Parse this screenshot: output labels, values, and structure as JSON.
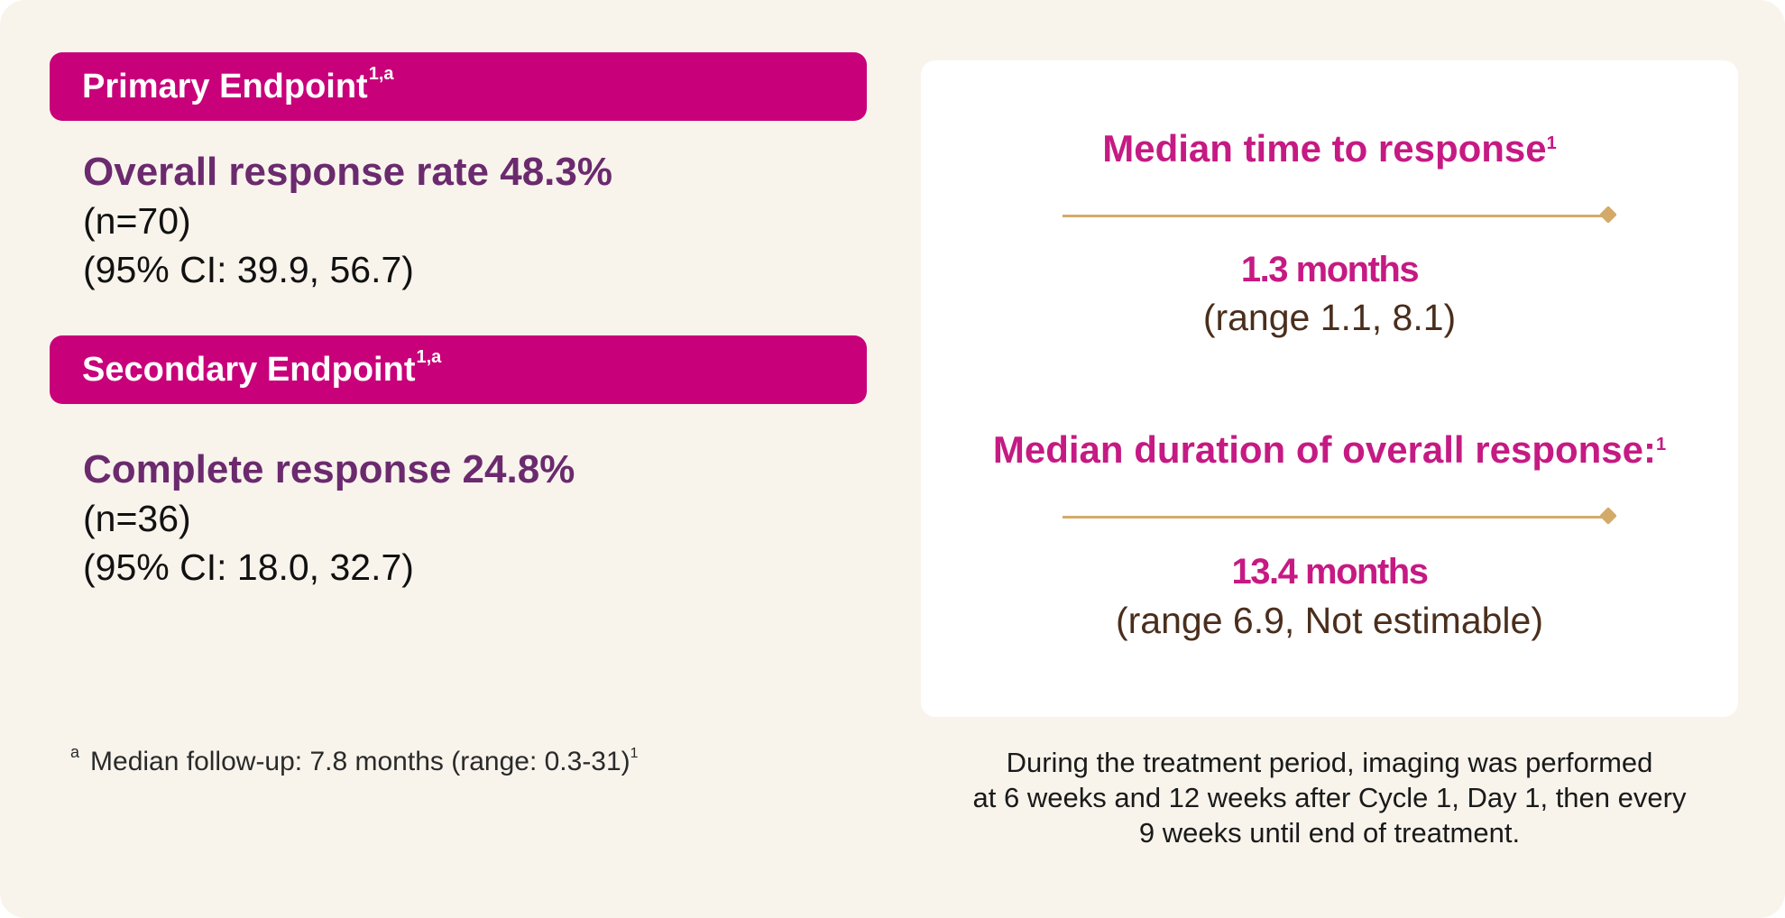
{
  "primary": {
    "banner_label": "Primary Endpoint",
    "banner_sup": "1,a",
    "title": "Overall response rate 48.3%",
    "n": "(n=70)",
    "ci": "(95% CI: 39.9, 56.7)"
  },
  "secondary": {
    "banner_label": "Secondary Endpoint",
    "banner_sup": "1,a",
    "title": "Complete response 24.8%",
    "n": "(n=36)",
    "ci": "(95% CI: 18.0, 32.7)"
  },
  "median_time": {
    "title": "Median time to response",
    "sup": "1",
    "value": "1.3 months",
    "range": "(range 1.1, 8.1)"
  },
  "median_duration": {
    "title": "Median duration of overall response:",
    "sup": "1",
    "value": "13.4 months",
    "range": "(range 6.9, Not estimable)"
  },
  "footnote": {
    "marker": "a",
    "text": "Median follow-up: 7.8 months (range: 0.3-31)",
    "sup": "1"
  },
  "imaging_note": {
    "line1": "During the treatment period, imaging was performed",
    "line2": "at 6 weeks and 12 weeks after Cycle 1, Day 1, then every",
    "line3": "9 weeks until end of treatment."
  },
  "colors": {
    "background": "#f8f4ec",
    "banner": "#c8007a",
    "endpoint_title": "#6b2a6e",
    "median_accent": "#c51a83",
    "divider": "#d4aa6a",
    "range_text": "#4a2e1c"
  }
}
